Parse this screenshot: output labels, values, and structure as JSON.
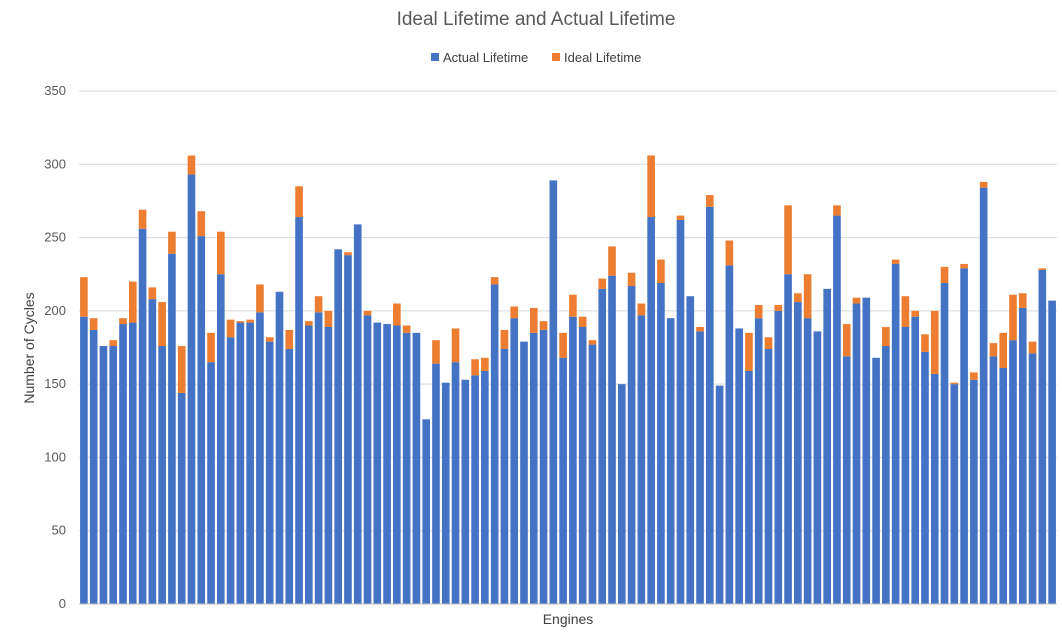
{
  "chart_data": {
    "type": "bar",
    "stacked": true,
    "title": "Ideal Lifetime and Actual Lifetime",
    "xlabel": "Engines",
    "ylabel": "Number of Cycles",
    "ylim": [
      0,
      350
    ],
    "yticks": [
      0,
      50,
      100,
      150,
      200,
      250,
      300,
      350
    ],
    "grid": true,
    "legend_position": "top",
    "colors": {
      "Actual Lifetime": "#4472C4",
      "Ideal Lifetime": "#ED7D31"
    },
    "series": [
      {
        "name": "Actual Lifetime",
        "values": [
          196,
          187,
          176,
          176,
          191,
          192,
          256,
          208,
          176,
          239,
          144,
          293,
          251,
          165,
          225,
          182,
          192,
          192,
          199,
          179,
          213,
          174,
          264,
          190,
          199,
          189,
          242,
          238,
          259,
          197,
          192,
          191,
          190,
          185,
          185,
          126,
          164,
          151,
          165,
          153,
          156,
          159,
          218,
          174,
          195,
          179,
          185,
          187,
          289,
          168,
          196,
          189,
          177,
          215,
          224,
          150,
          217,
          197,
          264,
          219,
          195,
          262,
          210,
          186,
          271,
          149,
          231,
          188,
          159,
          195,
          174,
          200,
          225,
          206,
          195,
          186,
          215,
          265,
          169,
          205,
          209,
          168,
          176,
          232,
          189,
          196,
          172,
          157,
          219,
          150,
          229,
          153,
          284,
          169,
          161,
          180,
          202,
          171,
          228,
          207
        ]
      },
      {
        "name": "Ideal Lifetime",
        "values": [
          27,
          8,
          0,
          4,
          4,
          28,
          13,
          8,
          30,
          15,
          32,
          13,
          17,
          20,
          29,
          12,
          1,
          2,
          19,
          3,
          0,
          13,
          21,
          3,
          11,
          11,
          0,
          2,
          0,
          3,
          0,
          0,
          15,
          5,
          0,
          0,
          16,
          0,
          23,
          0,
          11,
          9,
          5,
          13,
          8,
          0,
          17,
          6,
          0,
          17,
          15,
          7,
          3,
          7,
          20,
          0,
          9,
          8,
          42,
          16,
          0,
          3,
          0,
          3,
          8,
          0,
          17,
          0,
          26,
          9,
          8,
          4,
          47,
          6,
          30,
          0,
          0,
          7,
          22,
          4,
          0,
          0,
          13,
          3,
          21,
          4,
          12,
          43,
          11,
          1,
          3,
          5,
          4,
          9,
          24,
          31,
          10,
          8,
          1,
          0
        ]
      }
    ]
  }
}
